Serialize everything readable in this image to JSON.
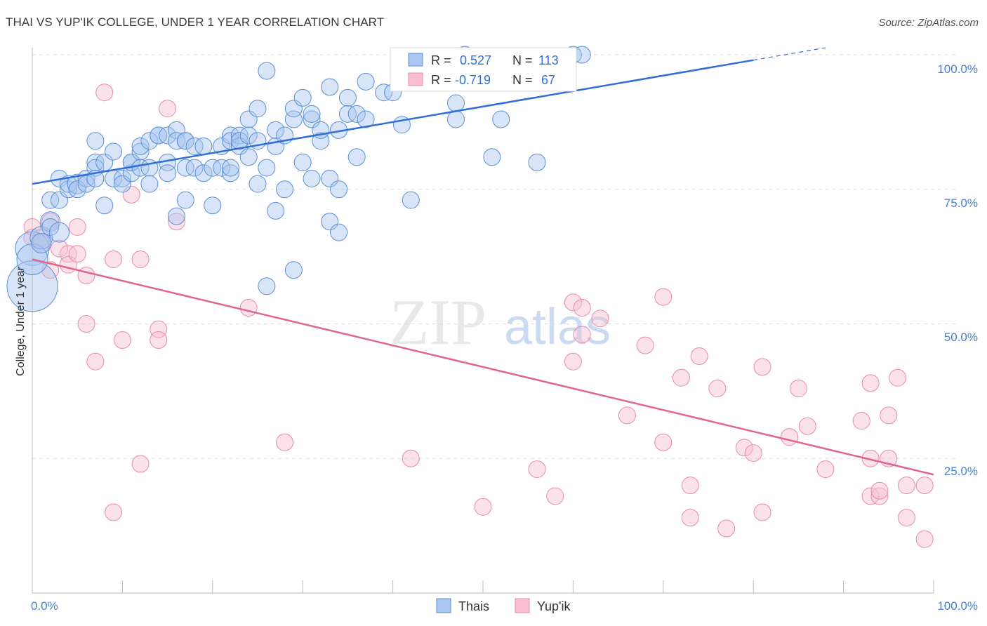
{
  "title": "THAI VS YUP'IK COLLEGE, UNDER 1 YEAR CORRELATION CHART",
  "source": "Source: ZipAtlas.com",
  "watermark": {
    "zip": "ZIP",
    "atlas": "atlas"
  },
  "colors": {
    "thais_fill": "#a8c6ef",
    "thais_stroke": "#5b8fd6",
    "thais_line": "#2f6fd6",
    "yupik_fill": "#f7bfd0",
    "yupik_stroke": "#e88aaa",
    "yupik_line": "#e0658f",
    "axis_tick": "#4a7fd0",
    "grid": "#dcdcdc"
  },
  "legend": {
    "rows": [
      {
        "r_label": "R =",
        "r_value": "0.527",
        "n_label": "N =",
        "n_value": "113",
        "series": "thais"
      },
      {
        "r_label": "R =",
        "r_value": "-0.719",
        "n_label": "N =",
        "n_value": "67",
        "series": "yupik"
      }
    ]
  },
  "chart_data": {
    "type": "scatter",
    "title": "THAI VS YUP'IK COLLEGE, UNDER 1 YEAR CORRELATION CHART",
    "xlabel": "",
    "ylabel": "College, Under 1 year",
    "xlim": [
      0,
      100
    ],
    "ylim": [
      0,
      100
    ],
    "x_tick_labels": [
      "0.0%",
      "100.0%"
    ],
    "y_tick_labels": [
      "100.0%",
      "75.0%",
      "50.0%",
      "25.0%"
    ],
    "y_ticks": [
      100,
      75,
      50,
      25
    ],
    "grid": true,
    "legend_position": "bottom-center",
    "series": [
      {
        "name": "Thais",
        "color": "#5b8fd6",
        "trend": {
          "x0": 0,
          "y0": 76.0,
          "x1": 80,
          "y1": 99.0,
          "dash_to_x": 88
        },
        "points": [
          [
            0,
            64,
            24
          ],
          [
            0,
            57,
            36
          ],
          [
            0,
            62,
            22
          ],
          [
            1,
            66,
            16
          ],
          [
            1,
            65,
            14
          ],
          [
            2,
            69,
            14
          ],
          [
            2,
            68,
            12
          ],
          [
            3,
            67,
            14
          ],
          [
            2,
            73,
            12
          ],
          [
            3,
            73,
            12
          ],
          [
            3,
            77,
            12
          ],
          [
            4,
            75,
            12
          ],
          [
            4,
            76,
            12
          ],
          [
            5,
            76,
            14
          ],
          [
            5,
            75,
            12
          ],
          [
            6,
            77,
            12
          ],
          [
            6,
            76,
            12
          ],
          [
            7,
            80,
            12
          ],
          [
            7,
            79,
            12
          ],
          [
            7,
            77,
            12
          ],
          [
            7,
            84,
            12
          ],
          [
            8,
            72,
            12
          ],
          [
            8,
            80,
            12
          ],
          [
            9,
            77,
            12
          ],
          [
            9,
            82,
            12
          ],
          [
            10,
            77,
            12
          ],
          [
            10,
            76,
            12
          ],
          [
            11,
            78,
            12
          ],
          [
            11,
            80,
            12
          ],
          [
            11,
            80,
            12
          ],
          [
            12,
            82,
            12
          ],
          [
            12,
            79,
            12
          ],
          [
            12,
            83,
            12
          ],
          [
            13,
            84,
            12
          ],
          [
            13,
            79,
            12
          ],
          [
            13,
            76,
            12
          ],
          [
            14,
            85,
            12
          ],
          [
            14,
            85,
            12
          ],
          [
            15,
            80,
            12
          ],
          [
            15,
            78,
            12
          ],
          [
            15,
            85,
            12
          ],
          [
            16,
            86,
            12
          ],
          [
            16,
            84,
            12
          ],
          [
            17,
            84,
            12
          ],
          [
            17,
            84,
            12
          ],
          [
            16,
            70,
            12
          ],
          [
            17,
            79,
            12
          ],
          [
            17,
            73,
            12
          ],
          [
            18,
            83,
            12
          ],
          [
            18,
            79,
            12
          ],
          [
            19,
            78,
            12
          ],
          [
            19,
            83,
            12
          ],
          [
            20,
            79,
            12
          ],
          [
            20,
            72,
            12
          ],
          [
            21,
            83,
            12
          ],
          [
            21,
            79,
            12
          ],
          [
            22,
            78,
            12
          ],
          [
            22,
            79,
            12
          ],
          [
            22,
            85,
            12
          ],
          [
            22,
            84,
            12
          ],
          [
            23,
            85,
            12
          ],
          [
            23,
            83,
            12
          ],
          [
            23,
            84,
            12
          ],
          [
            24,
            88,
            12
          ],
          [
            24,
            81,
            12
          ],
          [
            24,
            85,
            12
          ],
          [
            25,
            90,
            12
          ],
          [
            25,
            84,
            12
          ],
          [
            25,
            76,
            12
          ],
          [
            26,
            79,
            12
          ],
          [
            26,
            57,
            12
          ],
          [
            26,
            97,
            12
          ],
          [
            27,
            83,
            12
          ],
          [
            27,
            71,
            12
          ],
          [
            27,
            86,
            12
          ],
          [
            28,
            75,
            12
          ],
          [
            28,
            85,
            12
          ],
          [
            29,
            88,
            12
          ],
          [
            29,
            60,
            12
          ],
          [
            29,
            90,
            12
          ],
          [
            30,
            92,
            12
          ],
          [
            30,
            80,
            12
          ],
          [
            31,
            88,
            12
          ],
          [
            31,
            89,
            12
          ],
          [
            31,
            77,
            12
          ],
          [
            32,
            84,
            12
          ],
          [
            32,
            86,
            12
          ],
          [
            33,
            94,
            12
          ],
          [
            33,
            77,
            12
          ],
          [
            33,
            69,
            12
          ],
          [
            34,
            67,
            12
          ],
          [
            34,
            86,
            12
          ],
          [
            34,
            75,
            12
          ],
          [
            35,
            92,
            12
          ],
          [
            35,
            89,
            12
          ],
          [
            36,
            89,
            12
          ],
          [
            36,
            81,
            12
          ],
          [
            37,
            95,
            12
          ],
          [
            37,
            88,
            12
          ],
          [
            39,
            93,
            12
          ],
          [
            40,
            93,
            12
          ],
          [
            41,
            87,
            12
          ],
          [
            42,
            73,
            12
          ],
          [
            47,
            91,
            12
          ],
          [
            47,
            88,
            12
          ],
          [
            48,
            100,
            12
          ],
          [
            48,
            95,
            12
          ],
          [
            49,
            95,
            12
          ],
          [
            51,
            81,
            12
          ],
          [
            52,
            88,
            12
          ],
          [
            56,
            80,
            12
          ],
          [
            60,
            100,
            12
          ],
          [
            61,
            100,
            12
          ]
        ]
      },
      {
        "name": "Yup'ik",
        "color": "#e88aaa",
        "trend": {
          "x0": 0,
          "y0": 62.0,
          "x1": 100,
          "y1": 22.0
        },
        "points": [
          [
            0,
            68,
            12
          ],
          [
            0,
            66,
            12
          ],
          [
            1,
            66,
            12
          ],
          [
            1,
            65,
            12
          ],
          [
            2,
            60,
            12
          ],
          [
            2,
            69,
            12
          ],
          [
            3,
            64,
            12
          ],
          [
            4,
            63,
            12
          ],
          [
            4,
            61,
            12
          ],
          [
            5,
            68,
            12
          ],
          [
            5,
            63,
            12
          ],
          [
            6,
            59,
            12
          ],
          [
            6,
            50,
            12
          ],
          [
            7,
            43,
            12
          ],
          [
            8,
            93,
            12
          ],
          [
            9,
            62,
            12
          ],
          [
            9,
            15,
            12
          ],
          [
            10,
            47,
            12
          ],
          [
            11,
            74,
            12
          ],
          [
            12,
            24,
            12
          ],
          [
            12,
            62,
            12
          ],
          [
            14,
            49,
            12
          ],
          [
            14,
            47,
            12
          ],
          [
            15,
            90,
            12
          ],
          [
            16,
            69,
            12
          ],
          [
            24,
            53,
            12
          ],
          [
            28,
            28,
            12
          ],
          [
            42,
            25,
            12
          ],
          [
            50,
            16,
            12
          ],
          [
            56,
            23,
            12
          ],
          [
            58,
            18,
            12
          ],
          [
            60,
            54,
            12
          ],
          [
            60,
            43,
            12
          ],
          [
            61,
            53,
            12
          ],
          [
            61,
            48,
            12
          ],
          [
            63,
            51,
            12
          ],
          [
            66,
            33,
            12
          ],
          [
            68,
            46,
            12
          ],
          [
            70,
            28,
            12
          ],
          [
            70,
            55,
            12
          ],
          [
            72,
            40,
            12
          ],
          [
            73,
            14,
            12
          ],
          [
            73,
            20,
            12
          ],
          [
            74,
            44,
            12
          ],
          [
            76,
            38,
            12
          ],
          [
            77,
            12,
            12
          ],
          [
            79,
            27,
            12
          ],
          [
            80,
            26,
            12
          ],
          [
            81,
            15,
            12
          ],
          [
            81,
            42,
            12
          ],
          [
            84,
            29,
            12
          ],
          [
            85,
            38,
            12
          ],
          [
            86,
            31,
            12
          ],
          [
            88,
            23,
            12
          ],
          [
            92,
            32,
            12
          ],
          [
            93,
            25,
            12
          ],
          [
            93,
            18,
            12
          ],
          [
            93,
            39,
            12
          ],
          [
            94,
            18,
            12
          ],
          [
            94,
            19,
            12
          ],
          [
            95,
            33,
            12
          ],
          [
            95,
            25,
            12
          ],
          [
            96,
            40,
            12
          ],
          [
            97,
            20,
            12
          ],
          [
            97,
            14,
            12
          ],
          [
            99,
            20,
            12
          ],
          [
            99,
            10,
            12
          ]
        ]
      }
    ]
  }
}
